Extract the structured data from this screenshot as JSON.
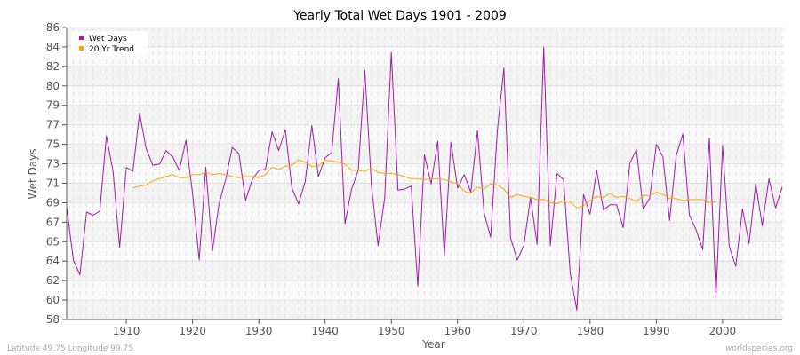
{
  "chart_data": {
    "type": "line",
    "title": "Yearly Total Wet Days 1901 - 2009",
    "xlabel": "Year",
    "ylabel": "Wet Days",
    "xlim": [
      1901,
      2009
    ],
    "ylim": [
      58,
      86
    ],
    "yticks": [
      "58",
      "60",
      "62",
      "64",
      "65",
      "67",
      "69",
      "71",
      "73",
      "75",
      "77",
      "79",
      "80",
      "82",
      "84",
      "86"
    ],
    "xticks": [
      1910,
      1920,
      1930,
      1940,
      1950,
      1960,
      1970,
      1980,
      1990,
      2000
    ],
    "grid": true,
    "legend_position": "top-left",
    "series": [
      {
        "name": "Wet Days",
        "color": "#a01aa8",
        "x_start": 1901,
        "values": [
          68.8,
          63.7,
          62.3,
          68.3,
          68.0,
          68.4,
          75.6,
          72.2,
          64.9,
          72.6,
          72.2,
          77.8,
          74.4,
          72.8,
          72.9,
          74.2,
          73.6,
          72.3,
          75.2,
          70.1,
          63.7,
          72.6,
          64.6,
          69.1,
          71.4,
          74.5,
          73.9,
          69.4,
          71.4,
          72.3,
          72.4,
          76.0,
          74.2,
          76.2,
          70.6,
          69.1,
          71.2,
          76.6,
          71.7,
          73.5,
          74.0,
          81.1,
          67.2,
          70.5,
          72.3,
          81.9,
          70.8,
          65.1,
          69.7,
          83.6,
          70.4,
          70.5,
          70.8,
          61.2,
          73.8,
          71.0,
          75.1,
          64.1,
          75.0,
          70.6,
          71.9,
          70.2,
          76.1,
          68.2,
          65.9,
          76.1,
          82.1,
          65.8,
          63.7,
          65.1,
          69.7,
          65.2,
          84.1,
          65.1,
          72.0,
          71.4,
          62.4,
          58.9,
          70.0,
          68.1,
          72.3,
          68.5,
          69.0,
          69.0,
          66.8,
          73.0,
          74.3,
          68.6,
          69.6,
          74.8,
          73.6,
          67.5,
          73.7,
          75.8,
          68.0,
          66.6,
          64.7,
          75.4,
          60.2,
          74.7,
          65.0,
          63.1,
          68.6,
          65.3,
          71.0,
          67.0,
          71.5,
          68.7,
          70.7
        ]
      },
      {
        "name": "20 Yr Trend",
        "color": "#ffa500",
        "x_start": 1911,
        "values": [
          70.6,
          70.8,
          70.9,
          71.3,
          71.5,
          71.7,
          71.9,
          71.6,
          71.6,
          71.9,
          71.9,
          72.1,
          71.9,
          72.0,
          71.9,
          71.7,
          71.6,
          71.7,
          71.7,
          71.6,
          71.9,
          72.6,
          72.4,
          72.7,
          72.8,
          73.3,
          73.1,
          72.7,
          72.7,
          73.3,
          73.2,
          73.1,
          72.9,
          72.3,
          72.3,
          72.2,
          72.5,
          72.1,
          72.0,
          72.0,
          71.9,
          71.7,
          71.5,
          71.5,
          71.4,
          71.5,
          71.5,
          71.4,
          71.2,
          71.0,
          70.3,
          70.1,
          70.7,
          70.5,
          71.0,
          70.9,
          70.5,
          69.7,
          70.0,
          69.8,
          69.7,
          69.5,
          69.5,
          69.2,
          69.1,
          69.4,
          69.3,
          68.7,
          68.9,
          69.4,
          69.8,
          69.7,
          70.1,
          69.7,
          69.8,
          69.6,
          69.3,
          69.9,
          69.9,
          70.2,
          70.0,
          69.6,
          69.6,
          69.4,
          69.5,
          69.5,
          69.5,
          69.2,
          69.3
        ]
      }
    ]
  },
  "footer": {
    "location": "Latitude 49.75 Longitude 99.75",
    "source": "worldspecies.org"
  }
}
